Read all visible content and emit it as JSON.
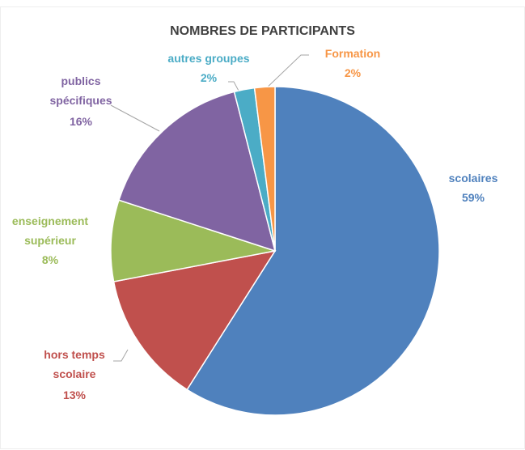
{
  "chart_data": {
    "type": "pie",
    "title": "NOMBRES DE PARTICIPANTS",
    "categories": [
      "scolaires",
      "hors temps scolaire",
      "enseignement supérieur",
      "publics spécifiques",
      "autres groupes",
      "Formation"
    ],
    "values": [
      59,
      13,
      8,
      16,
      2,
      2
    ],
    "value_labels": [
      "59%",
      "13%",
      "8%",
      "16%",
      "2%",
      "2%"
    ],
    "colors": [
      "#4f81bd",
      "#c0504d",
      "#9bbb59",
      "#8064a2",
      "#4bacc6",
      "#f79646"
    ]
  }
}
